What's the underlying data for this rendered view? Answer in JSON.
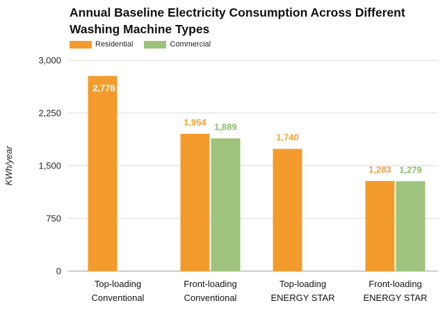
{
  "chart_data": {
    "type": "bar",
    "title": "Annual Baseline Electricity Consumption Across Different Washing Machine Types",
    "ylabel": "KWh/year",
    "xlabel": "",
    "ylim": [
      0,
      3000
    ],
    "yticks": [
      0,
      750,
      1500,
      2250,
      3000
    ],
    "ytick_labels": [
      "0",
      "750",
      "1,500",
      "2,250",
      "3,000"
    ],
    "categories": [
      [
        "Top-loading",
        "Conventional"
      ],
      [
        "Front-loading",
        "Conventional"
      ],
      [
        "Top-loading",
        "ENERGY STAR"
      ],
      [
        "Front-loading",
        "ENERGY STAR"
      ]
    ],
    "series": [
      {
        "name": "Residential",
        "color": "#f39c2d",
        "label_color": "#f3a23a",
        "values": [
          2778,
          1954,
          1740,
          1283
        ],
        "labels": [
          "2,778",
          "1,954",
          "1,740",
          "1,283"
        ]
      },
      {
        "name": "Commercial",
        "color": "#9dc37d",
        "label_color": "#8cbc6a",
        "values": [
          null,
          1889,
          null,
          1279
        ],
        "labels": [
          null,
          "1,889",
          null,
          "1,279"
        ]
      }
    ],
    "legend_position": "top-left",
    "grid": true
  }
}
